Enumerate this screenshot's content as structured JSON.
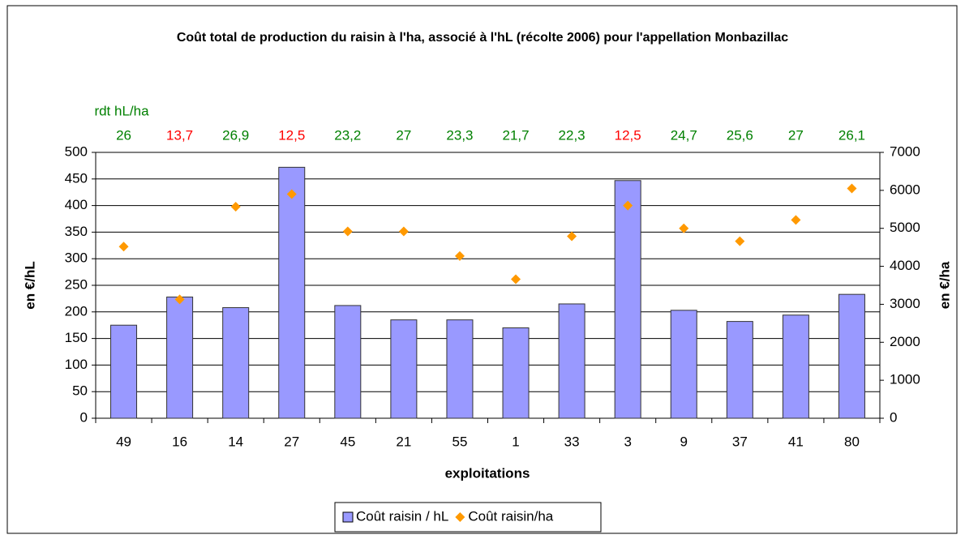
{
  "chart_data": {
    "type": "bar_scatter",
    "title": "Coût total de production du raisin à l'ha, associé à l'hL (récolte 2006) pour l'appellation Monbazillac",
    "xlabel": "exploitations",
    "ylabel": "en €/hL",
    "y2label": "en €/ha",
    "categories": [
      "49",
      "16",
      "14",
      "27",
      "45",
      "21",
      "55",
      "1",
      "33",
      "3",
      "9",
      "37",
      "41",
      "80"
    ],
    "series": [
      {
        "name": "Coût raisin / hL",
        "color": "#9999ff",
        "kind": "bar",
        "values": [
          175,
          228,
          208,
          472,
          212,
          185,
          185,
          170,
          215,
          447,
          203,
          182,
          194,
          233
        ]
      },
      {
        "name": "Coût raisin/ha",
        "color": "#ff9900",
        "kind": "scatter",
        "axis": "y2",
        "values": [
          4520,
          3130,
          5570,
          5900,
          4920,
          4920,
          4270,
          3660,
          4790,
          5600,
          5000,
          4660,
          5220,
          6050
        ]
      }
    ],
    "annotation": {
      "label": "rdt hL/ha",
      "values": [
        26,
        13.7,
        26.9,
        12.5,
        23.2,
        27,
        23.3,
        21.7,
        22.3,
        12.5,
        24.7,
        25.6,
        27,
        26.1
      ],
      "value_labels": [
        "26",
        "13,7",
        "26,9",
        "12,5",
        "23,2",
        "27",
        "23,3",
        "21,7",
        "22,3",
        "12,5",
        "24,7",
        "25,6",
        "27",
        "26,1"
      ],
      "colors": [
        "#008000",
        "#ff0000",
        "#008000",
        "#ff0000",
        "#008000",
        "#008000",
        "#008000",
        "#008000",
        "#008000",
        "#ff0000",
        "#008000",
        "#008000",
        "#008000",
        "#008000"
      ]
    },
    "ylim": [
      0,
      500
    ],
    "yticks": [
      0,
      50,
      100,
      150,
      200,
      250,
      300,
      350,
      400,
      450,
      500
    ],
    "y2lim": [
      0,
      7000
    ],
    "y2ticks": [
      0,
      1000,
      2000,
      3000,
      4000,
      5000,
      6000,
      7000
    ],
    "grid": true,
    "legend": "bottom"
  }
}
